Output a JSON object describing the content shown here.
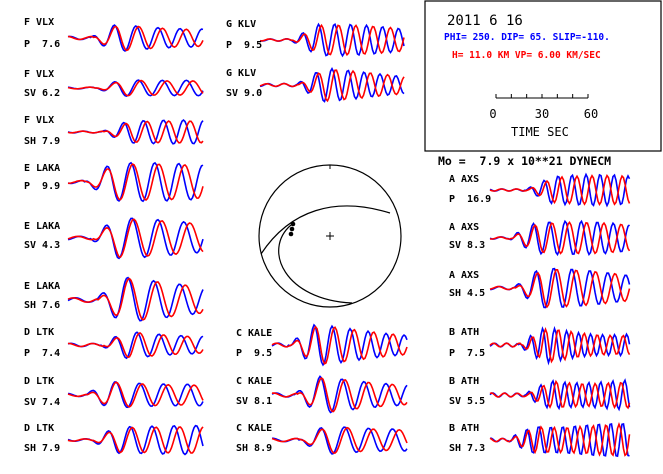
{
  "header": {
    "date": "2011  6 16",
    "mechanism": "PHI= 250. DIP= 65. SLIP=-110.",
    "depth_velocity": "H= 11.0 KM  VP= 6.00 KM/SEC",
    "moment": "Mo =  7.9 x 10**21 DYNECM"
  },
  "time_scale": {
    "ticks": [
      "0",
      "30",
      "60"
    ],
    "label": "TIME  SEC"
  },
  "colors": {
    "observed": "#0000ff",
    "synthetic": "#ff0000",
    "mechanism_text": "#0000ff",
    "depth_text": "#ff0000"
  },
  "stations": [
    {
      "name": "F VLX",
      "comp": "P  7.6"
    },
    {
      "name": "F VLX",
      "comp": "SV 6.2"
    },
    {
      "name": "F VLX",
      "comp": "SH 7.9"
    },
    {
      "name": "E LAKA",
      "comp": "P  9.9"
    },
    {
      "name": "E LAKA",
      "comp": "SV 4.3"
    },
    {
      "name": "E LAKA",
      "comp": "SH 7.6"
    },
    {
      "name": "D LTK",
      "comp": "P  7.4"
    },
    {
      "name": "D LTK",
      "comp": "SV 7.4"
    },
    {
      "name": "D LTK",
      "comp": "SH 7.9"
    },
    {
      "name": "G KLV",
      "comp": "P  9.5"
    },
    {
      "name": "G KLV",
      "comp": "SV 9.0"
    },
    {
      "name": "C KALE",
      "comp": "P  9.5"
    },
    {
      "name": "C KALE",
      "comp": "SV 8.1"
    },
    {
      "name": "C KALE",
      "comp": "SH 8.9"
    },
    {
      "name": "A AXS",
      "comp": "P  16.9"
    },
    {
      "name": "A AXS",
      "comp": "SV 8.3"
    },
    {
      "name": "A AXS",
      "comp": "SH 4.5"
    },
    {
      "name": "B ATH",
      "comp": "P  7.5"
    },
    {
      "name": "B ATH",
      "comp": "SV 5.5"
    },
    {
      "name": "B ATH",
      "comp": "SH 7.3"
    }
  ]
}
